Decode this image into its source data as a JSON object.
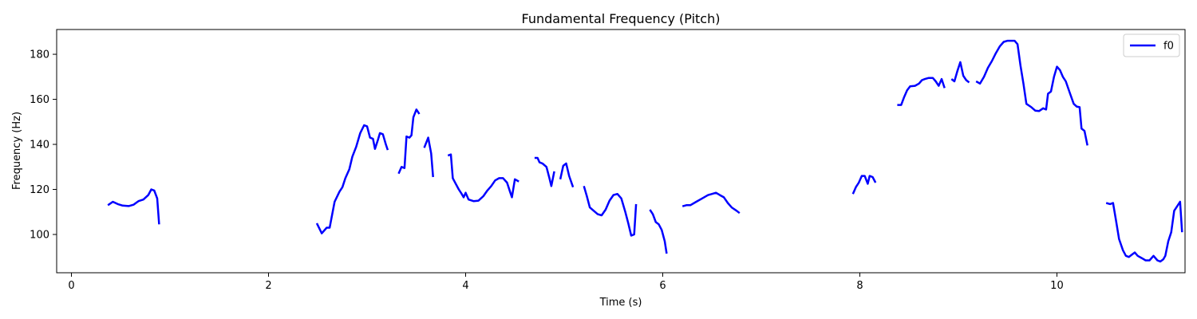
{
  "chart_data": {
    "type": "line",
    "title": "Fundamental Frequency (Pitch)",
    "xlabel": "Time (s)",
    "ylabel": "Frequency (Hz)",
    "xlim": [
      -0.15,
      11.3
    ],
    "ylim": [
      83,
      191
    ],
    "xticks": [
      0,
      2,
      4,
      6,
      8,
      10
    ],
    "yticks": [
      100,
      120,
      140,
      160,
      180
    ],
    "grid": false,
    "legend_position": "top-right",
    "series": [
      {
        "name": "f0",
        "color": "#0000ff",
        "segments": [
          [
            [
              0.37,
              113
            ],
            [
              0.42,
              114.5
            ],
            [
              0.47,
              113.5
            ],
            [
              0.52,
              112.8
            ],
            [
              0.58,
              112.6
            ],
            [
              0.63,
              113.2
            ],
            [
              0.68,
              114.8
            ],
            [
              0.73,
              115.5
            ],
            [
              0.78,
              117.5
            ],
            [
              0.81,
              120
            ],
            [
              0.84,
              119.5
            ],
            [
              0.87,
              116
            ],
            [
              0.89,
              104.5
            ]
          ],
          [
            [
              2.49,
              105
            ],
            [
              2.54,
              100.5
            ],
            [
              2.59,
              103
            ],
            [
              2.62,
              103
            ],
            [
              2.67,
              114.5
            ],
            [
              2.72,
              119
            ],
            [
              2.75,
              121
            ],
            [
              2.78,
              125
            ],
            [
              2.82,
              129
            ],
            [
              2.85,
              134.5
            ],
            [
              2.89,
              139
            ],
            [
              2.93,
              145
            ],
            [
              2.97,
              148.5
            ],
            [
              3.0,
              148
            ],
            [
              3.03,
              143
            ],
            [
              3.06,
              142.5
            ],
            [
              3.08,
              138
            ],
            [
              3.11,
              142
            ],
            [
              3.13,
              145
            ],
            [
              3.16,
              144.5
            ],
            [
              3.19,
              140
            ],
            [
              3.21,
              137.5
            ]
          ],
          [
            [
              3.32,
              127
            ],
            [
              3.35,
              130
            ],
            [
              3.38,
              129.5
            ],
            [
              3.4,
              143.5
            ],
            [
              3.43,
              143
            ],
            [
              3.45,
              144
            ],
            [
              3.47,
              152
            ],
            [
              3.5,
              155.5
            ],
            [
              3.53,
              153.5
            ]
          ],
          [
            [
              3.58,
              138.5
            ],
            [
              3.62,
              143
            ],
            [
              3.65,
              136
            ],
            [
              3.67,
              125.5
            ]
          ],
          [
            [
              3.82,
              135
            ],
            [
              3.85,
              135.5
            ],
            [
              3.87,
              125
            ],
            [
              3.9,
              122.5
            ],
            [
              3.93,
              120
            ],
            [
              3.96,
              118
            ],
            [
              3.98,
              116.5
            ],
            [
              4.0,
              118.5
            ],
            [
              4.03,
              115.5
            ],
            [
              4.08,
              114.8
            ],
            [
              4.13,
              115
            ],
            [
              4.18,
              117
            ],
            [
              4.22,
              119.5
            ],
            [
              4.26,
              121.5
            ],
            [
              4.3,
              124
            ],
            [
              4.34,
              125
            ],
            [
              4.38,
              125
            ],
            [
              4.42,
              123
            ],
            [
              4.45,
              119
            ],
            [
              4.47,
              116.5
            ],
            [
              4.5,
              124.5
            ],
            [
              4.54,
              123.5
            ]
          ],
          [
            [
              4.7,
              134
            ],
            [
              4.73,
              134
            ],
            [
              4.75,
              132
            ],
            [
              4.78,
              131.5
            ],
            [
              4.82,
              130
            ],
            [
              4.85,
              125
            ],
            [
              4.87,
              121.5
            ],
            [
              4.9,
              128
            ]
          ],
          [
            [
              4.96,
              124.5
            ],
            [
              4.99,
              130.5
            ],
            [
              5.02,
              131.5
            ],
            [
              5.05,
              126
            ],
            [
              5.09,
              121
            ]
          ],
          [
            [
              5.2,
              121.5
            ],
            [
              5.23,
              117
            ],
            [
              5.26,
              112
            ],
            [
              5.3,
              110.5
            ],
            [
              5.34,
              109
            ],
            [
              5.38,
              108.5
            ],
            [
              5.42,
              111
            ],
            [
              5.46,
              115
            ],
            [
              5.5,
              117.5
            ],
            [
              5.54,
              118
            ],
            [
              5.58,
              116
            ],
            [
              5.62,
              110
            ],
            [
              5.65,
              105
            ],
            [
              5.68,
              99.5
            ],
            [
              5.71,
              100
            ],
            [
              5.73,
              113.5
            ]
          ],
          [
            [
              5.87,
              111
            ],
            [
              5.9,
              109
            ],
            [
              5.93,
              105.5
            ],
            [
              5.96,
              104.5
            ],
            [
              5.99,
              102
            ],
            [
              6.02,
              97
            ],
            [
              6.04,
              91.5
            ]
          ],
          [
            [
              6.2,
              112.5
            ],
            [
              6.24,
              113
            ],
            [
              6.28,
              113
            ],
            [
              6.34,
              114.5
            ],
            [
              6.4,
              116
            ],
            [
              6.46,
              117.5
            ],
            [
              6.5,
              118
            ],
            [
              6.54,
              118.5
            ],
            [
              6.58,
              117.5
            ],
            [
              6.62,
              116.5
            ],
            [
              6.66,
              114
            ],
            [
              6.7,
              112
            ],
            [
              6.75,
              110.5
            ],
            [
              6.78,
              109.5
            ]
          ],
          [
            [
              7.93,
              118
            ],
            [
              7.96,
              121
            ],
            [
              7.99,
              123
            ],
            [
              8.02,
              126
            ],
            [
              8.05,
              126
            ],
            [
              8.08,
              122.5
            ],
            [
              8.1,
              126
            ],
            [
              8.13,
              125.5
            ],
            [
              8.16,
              123
            ]
          ],
          [
            [
              8.38,
              157.5
            ],
            [
              8.42,
              157.5
            ],
            [
              8.45,
              161
            ],
            [
              8.48,
              164
            ],
            [
              8.51,
              165.8
            ],
            [
              8.56,
              166
            ],
            [
              8.6,
              167
            ],
            [
              8.63,
              168.5
            ],
            [
              8.66,
              169
            ],
            [
              8.7,
              169.5
            ],
            [
              8.74,
              169.5
            ],
            [
              8.77,
              168
            ],
            [
              8.8,
              166
            ],
            [
              8.83,
              169
            ],
            [
              8.86,
              165
            ]
          ],
          [
            [
              8.93,
              169
            ],
            [
              8.96,
              168
            ],
            [
              8.99,
              172.5
            ],
            [
              9.02,
              176.5
            ],
            [
              9.05,
              170.5
            ],
            [
              9.08,
              168.5
            ],
            [
              9.11,
              167.5
            ]
          ],
          [
            [
              9.18,
              168
            ],
            [
              9.22,
              167
            ],
            [
              9.26,
              170
            ],
            [
              9.3,
              174
            ],
            [
              9.34,
              177
            ],
            [
              9.38,
              180.5
            ],
            [
              9.42,
              183.5
            ],
            [
              9.46,
              185.5
            ],
            [
              9.5,
              186
            ],
            [
              9.54,
              186
            ],
            [
              9.57,
              186
            ],
            [
              9.6,
              184.5
            ],
            [
              9.63,
              175
            ],
            [
              9.66,
              167
            ],
            [
              9.69,
              158
            ],
            [
              9.74,
              156.5
            ],
            [
              9.78,
              155
            ],
            [
              9.82,
              154.8
            ],
            [
              9.86,
              156
            ],
            [
              9.89,
              155.5
            ],
            [
              9.91,
              162.5
            ],
            [
              9.94,
              163.5
            ],
            [
              9.97,
              170
            ],
            [
              10.0,
              174.5
            ],
            [
              10.03,
              173
            ],
            [
              10.06,
              170
            ],
            [
              10.09,
              168
            ],
            [
              10.13,
              163
            ],
            [
              10.17,
              158
            ],
            [
              10.2,
              156.8
            ],
            [
              10.23,
              156.5
            ],
            [
              10.25,
              147
            ],
            [
              10.28,
              146
            ],
            [
              10.31,
              139.5
            ]
          ],
          [
            [
              10.5,
              114
            ],
            [
              10.54,
              113.5
            ],
            [
              10.57,
              114
            ],
            [
              10.6,
              106
            ],
            [
              10.63,
              98
            ],
            [
              10.67,
              93
            ],
            [
              10.7,
              90.5
            ],
            [
              10.73,
              90
            ],
            [
              10.76,
              91
            ],
            [
              10.79,
              92
            ],
            [
              10.82,
              90.5
            ],
            [
              10.86,
              89.5
            ],
            [
              10.9,
              88.5
            ],
            [
              10.94,
              88.5
            ],
            [
              10.98,
              90.5
            ],
            [
              11.02,
              88.5
            ],
            [
              11.05,
              88
            ],
            [
              11.08,
              89
            ],
            [
              11.1,
              90.5
            ],
            [
              11.13,
              97
            ],
            [
              11.16,
              101
            ],
            [
              11.19,
              110.5
            ],
            [
              11.22,
              112.5
            ],
            [
              11.25,
              114.5
            ],
            [
              11.27,
              101
            ]
          ]
        ]
      }
    ]
  }
}
